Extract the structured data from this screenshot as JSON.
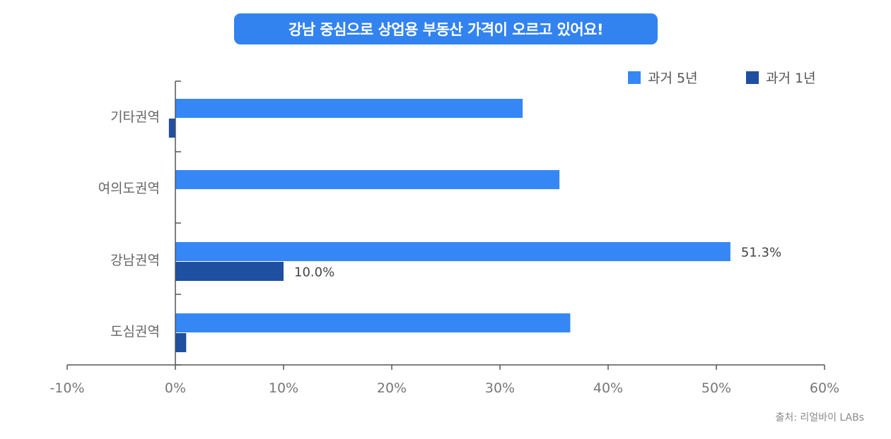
{
  "title": "강남 중심으로 상업용 부동산 가격이 오르고 있어요!",
  "source": "출처: 리얼바이 LABs",
  "colors": {
    "accent": "#3283f0",
    "series_5y": "#3587f5",
    "series_1y": "#1f4fa0",
    "axis": "#555555"
  },
  "chart_data": {
    "type": "bar",
    "orientation": "horizontal",
    "categories": [
      "기타권역",
      "여의도권역",
      "강남권역",
      "도심권역"
    ],
    "series": [
      {
        "name": "과거 5년",
        "values": [
          32.1,
          35.5,
          51.3,
          36.5
        ]
      },
      {
        "name": "과거 1년",
        "values": [
          -0.6,
          0.0,
          10.0,
          1.0
        ]
      }
    ],
    "data_labels": {
      "강남권역": [
        "51.3%",
        "10.0%"
      ]
    },
    "xlim": [
      -10,
      60
    ],
    "xticks": [
      "-10%",
      "0%",
      "10%",
      "20%",
      "30%",
      "40%",
      "50%",
      "60%"
    ],
    "legend_position": "top-right",
    "grid": false
  }
}
